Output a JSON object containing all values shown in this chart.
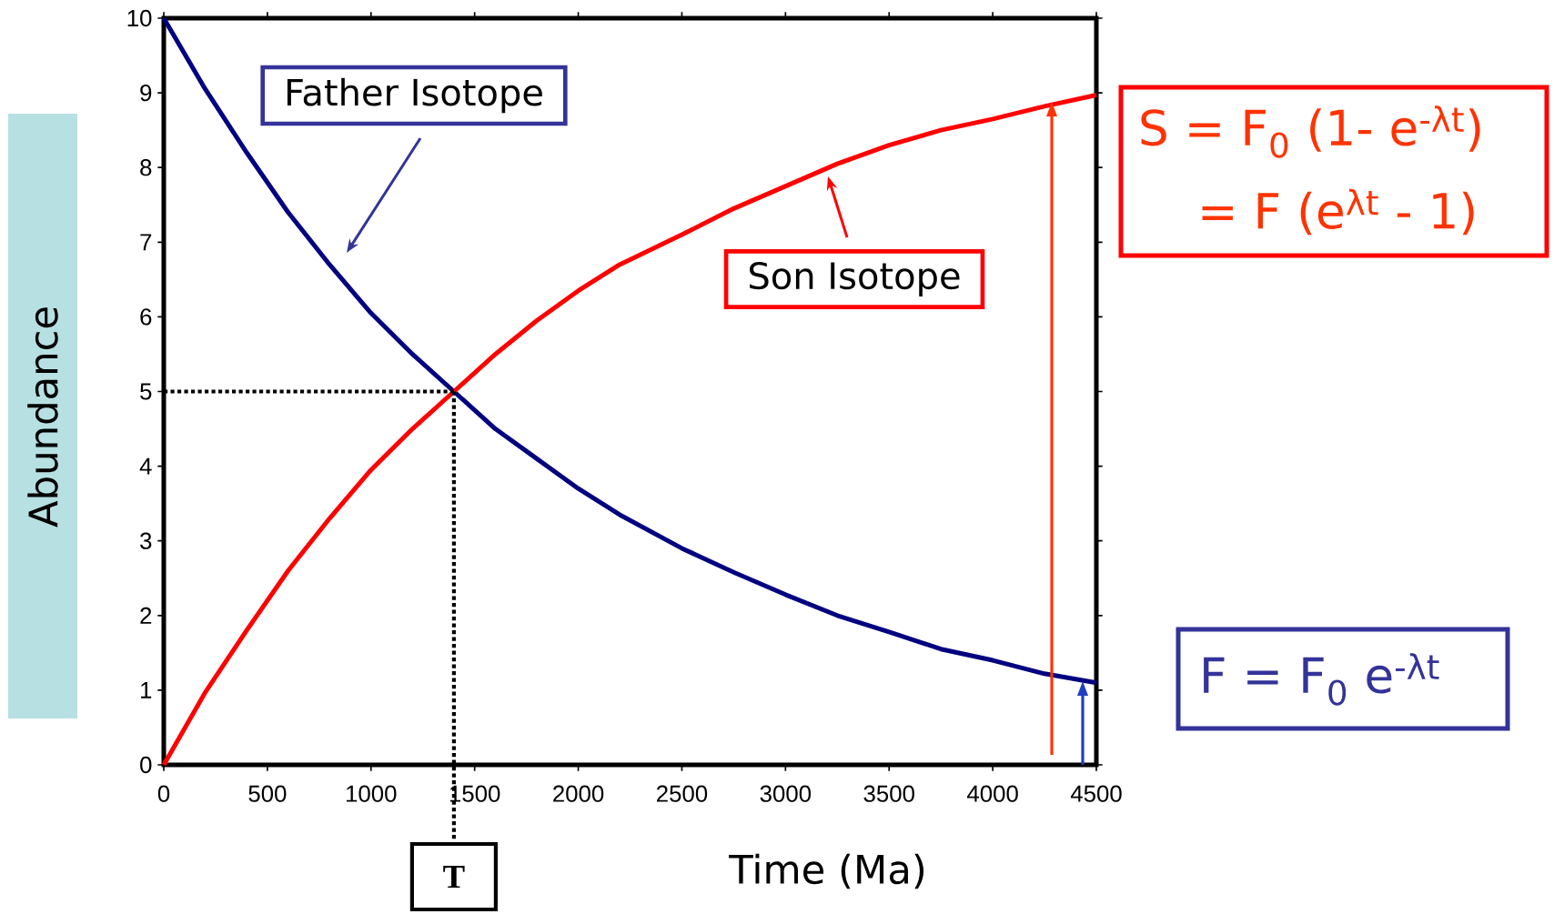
{
  "chart_data": {
    "type": "line",
    "xlabel": "Time (Ma)",
    "ylabel": "Abundance",
    "x": [
      0,
      200,
      400,
      600,
      800,
      1000,
      1200,
      1400,
      1600,
      1800,
      2000,
      2200,
      2500,
      2750,
      3000,
      3250,
      3500,
      3750,
      4000,
      4250,
      4500
    ],
    "series": [
      {
        "color": "#000080",
        "values": [
          10,
          9.05,
          8.2,
          7.4,
          6.7,
          6.05,
          5.5,
          5.0,
          4.5,
          4.1,
          3.7,
          3.35,
          2.9,
          2.58,
          2.28,
          2.0,
          1.78,
          1.55,
          1.4,
          1.22,
          1.1
        ]
      },
      {
        "color": "#ff0000",
        "values": [
          0,
          0.97,
          1.8,
          2.6,
          3.3,
          3.95,
          4.5,
          5.0,
          5.5,
          5.95,
          6.35,
          6.7,
          7.1,
          7.45,
          7.75,
          8.05,
          8.3,
          8.5,
          8.65,
          8.82,
          8.97
        ]
      }
    ],
    "xlim": [
      0,
      4500
    ],
    "xticks": [
      0,
      500,
      1000,
      1500,
      2000,
      2500,
      3000,
      3500,
      4000,
      4500
    ],
    "ylim": [
      0,
      10
    ],
    "yticks": [
      0,
      1,
      2,
      3,
      4,
      5,
      6,
      7,
      8,
      9,
      10
    ],
    "ref_lines": [
      {
        "axis": "x",
        "value": 1400,
        "label": "T",
        "line_style": "dotted",
        "color": "#000000"
      },
      {
        "axis": "y",
        "value": 5,
        "line_style": "dotted",
        "color": "#000000"
      }
    ],
    "annotations": [
      "Father Isotope",
      "Son Isotope",
      "S = F$_{0}$ (1- e$^{-λt}$)",
      "= F (e$^{λt}$ - 1)",
      "F = F$_{0}$ e$^{-λt}$"
    ],
    "grid": false,
    "marker": "none",
    "line_style": "solid"
  }
}
